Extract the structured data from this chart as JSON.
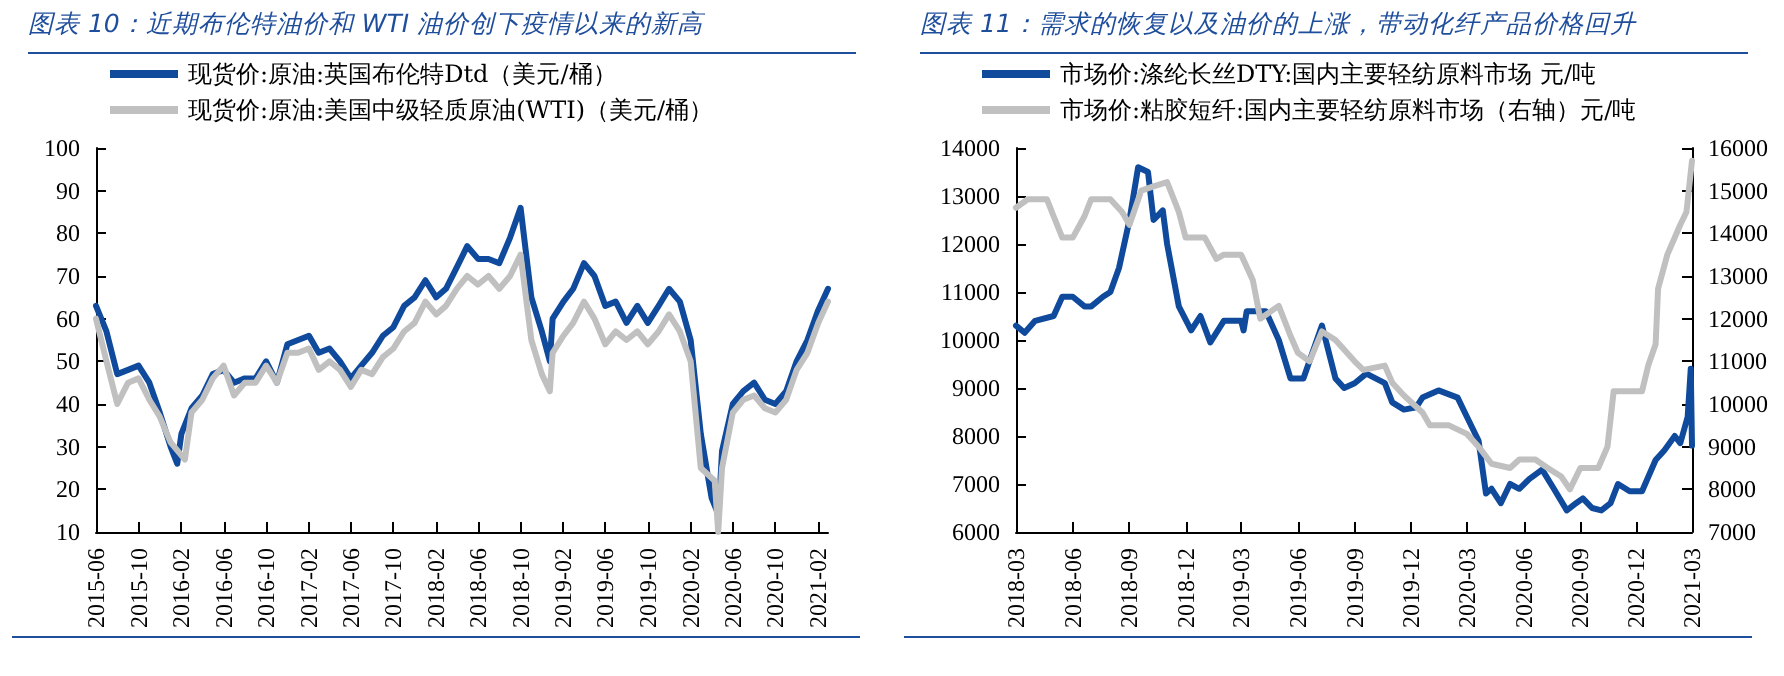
{
  "chart_data": [
    {
      "type": "line",
      "title": "图表 10：近期布伦特油价和 WTI 油价创下疫情以来的新高",
      "xlim": [
        "2015-06",
        "2021-03"
      ],
      "xticks": [
        "2015-06",
        "2015-10",
        "2016-02",
        "2016-06",
        "2016-10",
        "2017-02",
        "2017-06",
        "2017-10",
        "2018-02",
        "2018-06",
        "2018-10",
        "2019-02",
        "2019-06",
        "2019-10",
        "2020-02",
        "2020-06",
        "2020-10",
        "2021-02"
      ],
      "ylim": [
        10,
        100
      ],
      "yticks": [
        10,
        20,
        30,
        40,
        50,
        60,
        70,
        80,
        90,
        100
      ],
      "legend": "top",
      "grid": false,
      "marker": "none",
      "line_style": "solid",
      "series": [
        {
          "name": "现货价:原油:英国布伦特Dtd（美元/桶）",
          "color": "#0f4a9c",
          "x": [
            "2015-06",
            "2015-07",
            "2015-08",
            "2015-09",
            "2015-10",
            "2015-11",
            "2015-12",
            "2016-01",
            "2016-01-20",
            "2016-02",
            "2016-03",
            "2016-04",
            "2016-05",
            "2016-06",
            "2016-07",
            "2016-08",
            "2016-09",
            "2016-10",
            "2016-11",
            "2016-12",
            "2017-01",
            "2017-02",
            "2017-03",
            "2017-04",
            "2017-05",
            "2017-06",
            "2017-07",
            "2017-08",
            "2017-09",
            "2017-10",
            "2017-11",
            "2017-12",
            "2018-01",
            "2018-02",
            "2018-03",
            "2018-04",
            "2018-05",
            "2018-06",
            "2018-07",
            "2018-08",
            "2018-09",
            "2018-10",
            "2018-11",
            "2018-12",
            "2018-12-24",
            "2019-01",
            "2019-02",
            "2019-03",
            "2019-04",
            "2019-05",
            "2019-06",
            "2019-07",
            "2019-08",
            "2019-09",
            "2019-10",
            "2019-11",
            "2019-12",
            "2020-01",
            "2020-02",
            "2020-03",
            "2020-04",
            "2020-04-21",
            "2020-05",
            "2020-06",
            "2020-07",
            "2020-08",
            "2020-09",
            "2020-10",
            "2020-11",
            "2020-12",
            "2021-01",
            "2021-02",
            "2021-03"
          ],
          "values": [
            63,
            57,
            47,
            48,
            49,
            45,
            38,
            30,
            26,
            33,
            39,
            42,
            47,
            48,
            45,
            46,
            46,
            50,
            45,
            54,
            55,
            56,
            52,
            53,
            50,
            46,
            49,
            52,
            56,
            58,
            63,
            65,
            69,
            65,
            67,
            72,
            77,
            74,
            74,
            73,
            79,
            86,
            65,
            57,
            50,
            60,
            64,
            67,
            73,
            70,
            63,
            64,
            59,
            63,
            59,
            63,
            67,
            64,
            55,
            33,
            18,
            14,
            29,
            40,
            43,
            45,
            41,
            40,
            43,
            50,
            55,
            62,
            67
          ]
        },
        {
          "name": "现货价:原油:美国中级轻质原油(WTI)（美元/桶）",
          "color": "#c0c0c0",
          "x": [
            "2015-06",
            "2015-07",
            "2015-08",
            "2015-09",
            "2015-10",
            "2015-11",
            "2015-12",
            "2016-01",
            "2016-02-11",
            "2016-03",
            "2016-04",
            "2016-05",
            "2016-06",
            "2016-07",
            "2016-08",
            "2016-09",
            "2016-10",
            "2016-11",
            "2016-12",
            "2017-01",
            "2017-02",
            "2017-03",
            "2017-04",
            "2017-05",
            "2017-06",
            "2017-07",
            "2017-08",
            "2017-09",
            "2017-10",
            "2017-11",
            "2017-12",
            "2018-01",
            "2018-02",
            "2018-03",
            "2018-04",
            "2018-05",
            "2018-06",
            "2018-07",
            "2018-08",
            "2018-09",
            "2018-10",
            "2018-11",
            "2018-12",
            "2018-12-24",
            "2019-01",
            "2019-02",
            "2019-03",
            "2019-04",
            "2019-05",
            "2019-06",
            "2019-07",
            "2019-08",
            "2019-09",
            "2019-10",
            "2019-11",
            "2019-12",
            "2020-01",
            "2020-02",
            "2020-03",
            "2020-04-10",
            "2020-04-20",
            "2020-05",
            "2020-06",
            "2020-07",
            "2020-08",
            "2020-09",
            "2020-10",
            "2020-11",
            "2020-12",
            "2021-01",
            "2021-02",
            "2021-03"
          ],
          "values": [
            60,
            50,
            40,
            45,
            46,
            41,
            37,
            31,
            27,
            38,
            41,
            46,
            49,
            42,
            45,
            45,
            49,
            45,
            52,
            52,
            53,
            48,
            50,
            48,
            44,
            48,
            47,
            51,
            53,
            57,
            59,
            64,
            61,
            63,
            67,
            70,
            68,
            70,
            67,
            70,
            75,
            55,
            47,
            43,
            52,
            56,
            59,
            64,
            60,
            54,
            57,
            55,
            57,
            54,
            57,
            61,
            57,
            50,
            25,
            22,
            10,
            25,
            38,
            41,
            42,
            39,
            38,
            41,
            48,
            52,
            59,
            64
          ]
        }
      ]
    },
    {
      "type": "line",
      "title": "图表 11：需求的恢复以及油价的上涨，带动化纤产品价格回升",
      "xlim": [
        "2018-03",
        "2021-03"
      ],
      "xticks": [
        "2018-03",
        "2018-06",
        "2018-09",
        "2018-12",
        "2019-03",
        "2019-06",
        "2019-09",
        "2019-12",
        "2020-03",
        "2020-06",
        "2020-09",
        "2020-12",
        "2021-03"
      ],
      "ylim": [
        6000,
        14000
      ],
      "yticks": [
        6000,
        7000,
        8000,
        9000,
        10000,
        11000,
        12000,
        13000,
        14000
      ],
      "y2lim": [
        7000,
        16000
      ],
      "y2ticks": [
        7000,
        8000,
        9000,
        10000,
        11000,
        12000,
        13000,
        14000,
        15000,
        16000
      ],
      "legend": "top",
      "grid": false,
      "marker": "none",
      "line_style": "solid",
      "series": [
        {
          "name": "市场价:涤纶长丝DTY:国内主要轻纺原料市场 元/吨",
          "color": "#0f4a9c",
          "x": [
            "2018-03",
            "2018-03-15",
            "2018-04",
            "2018-05",
            "2018-05-15",
            "2018-06",
            "2018-06-20",
            "2018-07",
            "2018-07-20",
            "2018-08",
            "2018-08-15",
            "2018-09",
            "2018-09-15",
            "2018-10",
            "2018-10-10",
            "2018-10-25",
            "2018-11",
            "2018-11-20",
            "2018-12-10",
            "2018-12-25",
            "2019-01-10",
            "2019-02",
            "2019-03",
            "2019-03-05",
            "2019-03-10",
            "2019-04-10",
            "2019-05",
            "2019-05-20",
            "2019-06-10",
            "2019-07-10",
            "2019-08",
            "2019-08-15",
            "2019-09",
            "2019-09-20",
            "2019-10-20",
            "2019-11",
            "2019-11-20",
            "2019-12-10",
            "2019-12-20",
            "2020-01-15",
            "2020-02-15",
            "2020-03",
            "2020-03-20",
            "2020-04",
            "2020-04-10",
            "2020-04-25",
            "2020-05-10",
            "2020-05-25",
            "2020-06-10",
            "2020-07",
            "2020-07-20",
            "2020-08-10",
            "2020-08-25",
            "2020-09-05",
            "2020-09-20",
            "2020-10-05",
            "2020-10-20",
            "2020-11",
            "2020-11-20",
            "2020-12-10",
            "2021-01",
            "2021-01-15",
            "2021-02",
            "2021-02-10",
            "2021-02-22",
            "2021-02-27",
            "2021-03"
          ],
          "values": [
            10300,
            10150,
            10400,
            10500,
            10900,
            10900,
            10700,
            10700,
            10900,
            11000,
            11500,
            12500,
            13600,
            13500,
            12500,
            12700,
            12000,
            10700,
            10200,
            10500,
            9950,
            10400,
            10400,
            10200,
            10600,
            10600,
            10000,
            9200,
            9200,
            10300,
            9200,
            9000,
            9100,
            9300,
            9100,
            8700,
            8550,
            8600,
            8800,
            8950,
            8800,
            8400,
            7900,
            6800,
            6900,
            6600,
            7000,
            6900,
            7100,
            7300,
            6900,
            6450,
            6600,
            6700,
            6500,
            6450,
            6600,
            7000,
            6850,
            6850,
            7500,
            7700,
            8000,
            7850,
            8400,
            9400,
            7800
          ]
        },
        {
          "name": "市场价:粘胶短纤:国内主要轻纺原料市场（右轴）元/吨",
          "color": "#c0c0c0",
          "axis": "y2",
          "x": [
            "2018-03",
            "2018-03-20",
            "2018-04-20",
            "2018-05",
            "2018-05-15",
            "2018-06",
            "2018-06-20",
            "2018-07",
            "2018-08",
            "2018-08-20",
            "2018-09",
            "2018-09-20",
            "2018-10-10",
            "2018-11",
            "2018-11-20",
            "2018-12",
            "2019-01",
            "2019-01-20",
            "2019-02",
            "2019-03",
            "2019-03-20",
            "2019-04",
            "2019-05",
            "2019-05-20",
            "2019-06",
            "2019-06-20",
            "2019-07-10",
            "2019-08",
            "2019-09",
            "2019-09-15",
            "2019-10-20",
            "2019-11",
            "2019-11-20",
            "2019-12-20",
            "2020-01",
            "2020-02",
            "2020-03",
            "2020-03-20",
            "2020-04-10",
            "2020-05-10",
            "2020-05-25",
            "2020-06-20",
            "2020-07-10",
            "2020-08",
            "2020-08-15",
            "2020-09",
            "2020-09-30",
            "2020-10-15",
            "2020-10-25",
            "2020-11-30",
            "2020-12-10",
            "2020-12-20",
            "2021-01",
            "2021-01-05",
            "2021-01-20",
            "2021-02-10",
            "2021-02-20",
            "2021-03"
          ],
          "values": [
            14600,
            14800,
            14800,
            14400,
            13900,
            13900,
            14400,
            14800,
            14800,
            14500,
            14200,
            15000,
            15100,
            15200,
            14500,
            13900,
            13900,
            13400,
            13500,
            13500,
            12900,
            12000,
            12300,
            11600,
            11200,
            11000,
            11700,
            11500,
            11000,
            10800,
            10900,
            10500,
            10200,
            9800,
            9500,
            9500,
            9300,
            9000,
            8600,
            8500,
            8700,
            8700,
            8500,
            8300,
            8000,
            8500,
            8500,
            9000,
            10300,
            10300,
            10300,
            10900,
            11400,
            12700,
            13500,
            14200,
            14500,
            15700
          ]
        }
      ]
    }
  ]
}
